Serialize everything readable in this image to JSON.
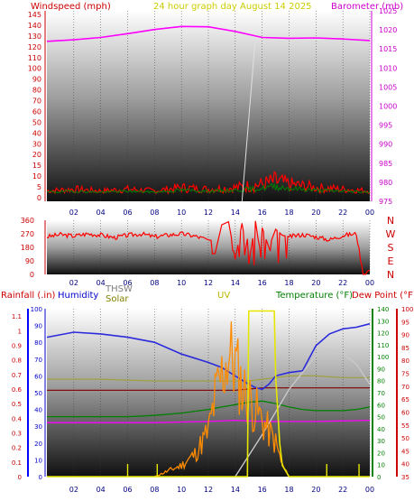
{
  "header": {
    "left_label": "Windspeed (mph)",
    "center_label": "24 hour graph day   August 14 2025",
    "right_label": "Barometer (mb)"
  },
  "colors": {
    "wind": "#ff0000",
    "gust_fill": "#ff0000",
    "baro": "#ff00ff",
    "dir": "#ff0000",
    "rain": "#0000ff",
    "humidity": "#2b2bdc",
    "solar": "#808000",
    "uv": "#e6e600",
    "temperature": "#008000",
    "dewpoint": "#b00000",
    "thsw": "#d0d0d0",
    "hi_temp": "#a0a040",
    "wind_chill": "#800000",
    "heat_index": "#ff00ff",
    "rain_rate": "#ff8c00",
    "sun_curve": "#c8c8c8",
    "text_wind_label": "#cc0000",
    "text_center": "#cccc00",
    "text_baro": "#cc00cc",
    "text_rain": "#cc0000",
    "text_hum": "#0000cc",
    "text_solar": "#808000",
    "text_uv": "#b8b800",
    "text_temp": "#008000",
    "text_dew": "#cc0000",
    "text_thsw": "#808080"
  },
  "chart_data": [
    {
      "type": "line",
      "name": "wind_baro",
      "x_ticks": [
        "02",
        "04",
        "06",
        "08",
        "10",
        "12",
        "14",
        "16",
        "18",
        "20",
        "22",
        "00"
      ],
      "left_axis": {
        "label": "Windspeed (mph)",
        "ticks": [
          "0",
          "5",
          "10",
          "15",
          "20",
          "30",
          "40",
          "50",
          "60",
          "70",
          "80",
          "90",
          "100",
          "110",
          "120",
          "130",
          "140",
          "145"
        ]
      },
      "right_axis": {
        "label": "Barometer (mb)",
        "ticks": [
          "975",
          "980",
          "985",
          "990",
          "995",
          "1000",
          "1005",
          "1010",
          "1015",
          "1020",
          "1025"
        ],
        "ylim": [
          975,
          1025
        ]
      },
      "series": [
        {
          "name": "Barometer",
          "unit": "mb",
          "x": [
            0,
            2,
            4,
            6,
            8,
            10,
            12,
            14,
            16,
            18,
            20,
            22,
            24
          ],
          "values": [
            1017.0,
            1017.4,
            1018.0,
            1019.0,
            1020.1,
            1020.9,
            1020.8,
            1019.6,
            1018.0,
            1017.8,
            1017.9,
            1017.6,
            1017.2
          ]
        },
        {
          "name": "Windspeed",
          "unit": "mph",
          "x": [
            0,
            2,
            4,
            6,
            8,
            10,
            12,
            14,
            16,
            17,
            18,
            20,
            22,
            24
          ],
          "values": [
            2,
            3,
            2,
            3,
            2,
            4,
            3,
            4,
            6,
            8,
            6,
            4,
            3,
            2
          ]
        }
      ]
    },
    {
      "type": "scatter",
      "name": "wind_direction",
      "x_ticks": [
        "02",
        "04",
        "06",
        "08",
        "10",
        "12",
        "14",
        "16",
        "18",
        "20",
        "22",
        "00"
      ],
      "y_ticks": [
        "0",
        "90",
        "180",
        "270",
        "360"
      ],
      "compass_labels": [
        "N",
        "W",
        "S",
        "E",
        "N"
      ],
      "ylim": [
        0,
        360
      ],
      "series": [
        {
          "name": "Wind Direction",
          "x": [
            0,
            1,
            2,
            3,
            4,
            5,
            6,
            7,
            8,
            9,
            10,
            11,
            12,
            12.5,
            13,
            13.5,
            14,
            14.5,
            15,
            15.5,
            16,
            16.5,
            17,
            17.5,
            18,
            19,
            20,
            21,
            22,
            23,
            23.5,
            24
          ],
          "values": [
            250,
            265,
            255,
            270,
            262,
            245,
            260,
            270,
            250,
            262,
            270,
            255,
            230,
            220,
            30,
            10,
            260,
            20,
            290,
            5,
            310,
            180,
            300,
            260,
            250,
            265,
            250,
            230,
            260,
            270,
            0,
            30
          ]
        }
      ]
    },
    {
      "type": "line",
      "name": "climate",
      "x_ticks": [
        "02",
        "04",
        "06",
        "08",
        "10",
        "12",
        "14",
        "16",
        "18",
        "20",
        "22",
        "00"
      ],
      "left_axis": {
        "label": "Rainfall (.in)",
        "ticks": [
          "0",
          "0.1",
          "0.2",
          "0.3",
          "0.4",
          "0.5",
          "0.6",
          "0.7",
          "0.8",
          "0.9",
          "1",
          "1.1"
        ]
      },
      "left_axis_2": {
        "label": "Humidity",
        "ticks": [
          "0",
          "10",
          "20",
          "30",
          "40",
          "50",
          "60",
          "70",
          "80",
          "90",
          "100"
        ]
      },
      "right_axis_temp": {
        "label": "Temperature (°F)",
        "ticks": [
          "0",
          "10",
          "20",
          "30",
          "40",
          "50",
          "60",
          "70",
          "80",
          "90",
          "100",
          "110",
          "120",
          "130",
          "140"
        ]
      },
      "right_axis_dew": {
        "label": "Dew Point (°F)",
        "ticks": [
          "35",
          "40",
          "45",
          "50",
          "55",
          "60",
          "65",
          "70",
          "75",
          "80",
          "85",
          "90",
          "95",
          "100"
        ]
      },
      "extra_labels": {
        "thsw": "THSW",
        "solar": "Solar",
        "uv": "UV"
      },
      "series": [
        {
          "name": "Humidity",
          "unit": "%",
          "x": [
            0,
            2,
            4,
            6,
            8,
            10,
            12,
            13,
            14,
            15,
            15.5,
            16,
            16.5,
            17,
            18,
            19,
            20,
            21,
            22,
            23,
            24
          ],
          "values": [
            83,
            86,
            85,
            83,
            80,
            73,
            68,
            65,
            60,
            55,
            53,
            52,
            55,
            60,
            62,
            63,
            78,
            85,
            88,
            89,
            91
          ]
        },
        {
          "name": "Temperature",
          "unit": "°F",
          "x": [
            0,
            2,
            4,
            6,
            8,
            10,
            12,
            13,
            14,
            15,
            16,
            17,
            18,
            19,
            20,
            21,
            22,
            23,
            24
          ],
          "values": [
            50,
            50,
            50,
            50,
            51,
            53,
            56,
            58,
            60,
            62,
            63,
            61,
            58,
            56,
            55,
            55,
            55,
            56,
            58
          ]
        },
        {
          "name": "Dew Point",
          "unit": "°F",
          "x": [
            0,
            4,
            8,
            12,
            14,
            15,
            16,
            17,
            18,
            20,
            22,
            24
          ],
          "values": [
            72,
            72,
            72,
            72,
            72,
            73,
            74,
            74,
            74,
            74,
            74,
            74
          ]
        },
        {
          "name": "Solar",
          "x": [
            0,
            4,
            8,
            12,
            14,
            15,
            16,
            17,
            18,
            20,
            22,
            24
          ],
          "values": [
            58,
            58,
            57,
            57,
            57,
            57,
            58,
            59,
            60,
            60,
            59,
            59
          ]
        },
        {
          "name": "UV",
          "x": [
            0,
            14.9,
            15,
            16.9,
            17,
            17.3,
            17.5,
            18,
            24
          ],
          "values": [
            0,
            0,
            14.8,
            14.8,
            9,
            3,
            1,
            0,
            0
          ]
        },
        {
          "name": "Rain Rate",
          "x": [
            8,
            10,
            11,
            12,
            12.5,
            13,
            13.5,
            14,
            14.5,
            15,
            16,
            16.5,
            17,
            17.5,
            18
          ],
          "values": [
            0,
            1,
            2,
            4,
            7,
            9,
            11,
            10,
            8,
            7,
            5,
            4,
            3,
            1,
            0
          ]
        },
        {
          "name": "Heat Index",
          "unit": "°F",
          "x": [
            0,
            4,
            8,
            12,
            14,
            16,
            18,
            20,
            24
          ],
          "values": [
            45,
            45,
            45,
            46,
            47,
            46,
            46,
            46,
            47
          ]
        },
        {
          "name": "Sun Elevation",
          "x": [
            14,
            16,
            18,
            20,
            21,
            22,
            23,
            24
          ],
          "values": [
            0,
            25,
            52,
            72,
            76,
            73,
            67,
            55
          ]
        }
      ]
    }
  ]
}
